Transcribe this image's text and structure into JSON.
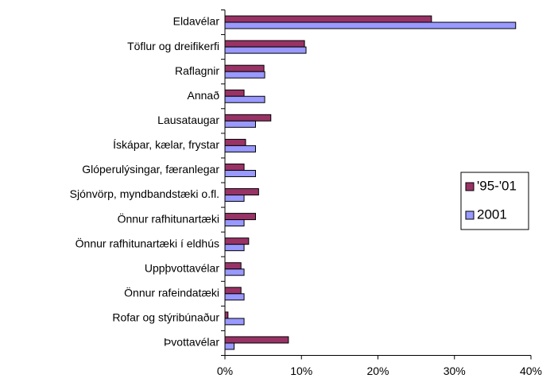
{
  "chart_data": {
    "type": "hbar",
    "categories": [
      "Eldavélar",
      "Töflur og dreifikerfi",
      "Raflagnir",
      "Annað",
      "Lausataugar",
      "Ískápar, kælar, frystar",
      "Glóperulýsingar, færanlegar",
      "Sjónvörp, myndbandstæki o.fl.",
      "Önnur rafhitunartæki",
      "Önnur rafhitunartæki í eldhús",
      "Uppþvottavélar",
      "Önnur rafeindatæki",
      "Rofar og stýribúnaður",
      "Þvottavélar"
    ],
    "series": [
      {
        "name": "'95-'01",
        "color": "#993366",
        "values": [
          27,
          10.4,
          5.1,
          2.5,
          6.0,
          2.7,
          2.5,
          4.4,
          4.0,
          3.1,
          2.1,
          2.1,
          0.4,
          8.3
        ]
      },
      {
        "name": "2001",
        "color": "#9999ff",
        "values": [
          38,
          10.6,
          5.2,
          5.2,
          4.0,
          4.0,
          4.0,
          2.5,
          2.5,
          2.5,
          2.5,
          2.5,
          2.5,
          1.2
        ]
      }
    ],
    "xlim": [
      0,
      40
    ],
    "xticks": [
      {
        "value": 0,
        "label": "0%"
      },
      {
        "value": 10,
        "label": "10%"
      },
      {
        "value": 20,
        "label": "20%"
      },
      {
        "value": 30,
        "label": "30%"
      },
      {
        "value": 40,
        "label": "40%"
      }
    ],
    "legend": "right"
  }
}
